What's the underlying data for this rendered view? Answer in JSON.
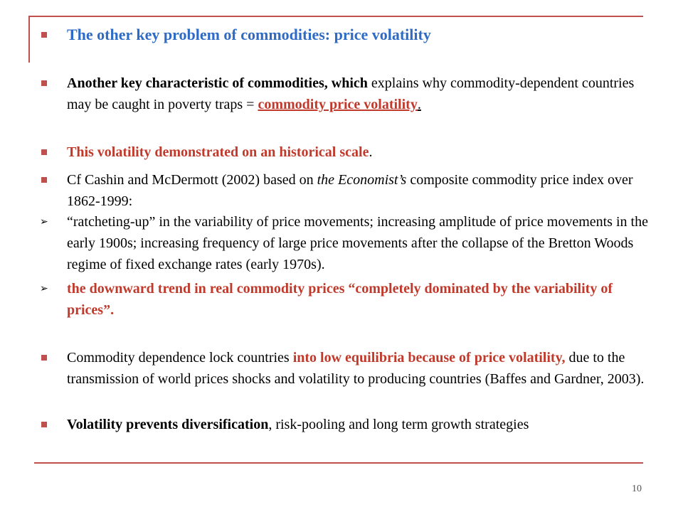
{
  "slide": {
    "title": "The other key problem of commodities: price volatility",
    "page_number": "10",
    "colors": {
      "accent": "#c0504d",
      "title": "#2e6bc4",
      "highlight": "#c0392b"
    },
    "items": [
      {
        "bullet": "square",
        "a": "Another key characteristic of commodities, which",
        "b": " explains why commodity-dependent countries may be caught in poverty traps = ",
        "c": "commodity price volatility",
        "d": "."
      },
      {
        "bullet": "square",
        "a": "This volatility demonstrated on an historical scale",
        "b": "."
      },
      {
        "bullet": "square",
        "a": " Cf Cashin and McDermott (2002) based on ",
        "b": "the Economist’s",
        "c": " composite commodity price index over 1862-1999:"
      },
      {
        "bullet": "arrow",
        "a": "“ratcheting-up” in the variability of price movements; increasing amplitude of price movements in the early 1900s; increasing frequency of large price movements after the collapse of the Bretton Woods regime of fixed exchange rates (early 1970s)."
      },
      {
        "bullet": "arrow",
        "a": "the downward trend in real commodity prices “completely dominated by the variability of prices”."
      },
      {
        "bullet": "square",
        "a": "Commodity dependence lock countries ",
        "b": "into low equilibria because of price volatility,",
        "c": " due to the transmission of world prices shocks and volatility to producing countries (Baffes and Gardner, 2003)."
      },
      {
        "bullet": "square",
        "a": "Volatility prevents diversification",
        "b": ", risk-pooling and long term growth strategies"
      }
    ]
  }
}
